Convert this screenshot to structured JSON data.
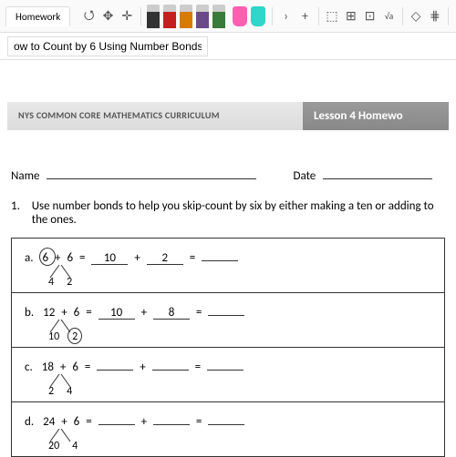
{
  "toolbar": {
    "tab_label": "Homework",
    "pen_colors": [
      "#333333",
      "#c41e1e",
      "#d67b00",
      "#6b4a8a",
      "#3a7a3a"
    ],
    "highlighter_colors": [
      "#ff5fb0",
      "#2fd6c9"
    ]
  },
  "subbar": {
    "title_value": "ow to Count by 6 Using Number Bonds"
  },
  "banner": {
    "left": "NYS COMMON CORE MATHEMATICS CURRICULUM",
    "right": "Lesson 4 Homewo"
  },
  "labels": {
    "name": "Name",
    "date": "Date"
  },
  "instruction": {
    "number": "1.",
    "text": "Use number bonds to help you skip-count by six by either making a ten or adding to the ones."
  },
  "problems": [
    {
      "letter": "a.",
      "a": "6",
      "b": "6",
      "fill1": "10",
      "fill2": "2",
      "bond_l": "4",
      "bond_r": "2",
      "oval_a": true,
      "oval_bond_r": false
    },
    {
      "letter": "b.",
      "a": "12",
      "b": "6",
      "fill1": "10",
      "fill2": "8",
      "bond_l": "10",
      "bond_r": "2",
      "oval_a": false,
      "oval_bond_r": true
    },
    {
      "letter": "c.",
      "a": "18",
      "b": "6",
      "fill1": "",
      "fill2": "",
      "bond_l": "2",
      "bond_r": "4",
      "oval_a": false,
      "oval_bond_r": false
    },
    {
      "letter": "d.",
      "a": "24",
      "b": "6",
      "fill1": "",
      "fill2": "",
      "bond_l": "20",
      "bond_r": "4",
      "oval_a": false,
      "oval_bond_r": false
    }
  ]
}
